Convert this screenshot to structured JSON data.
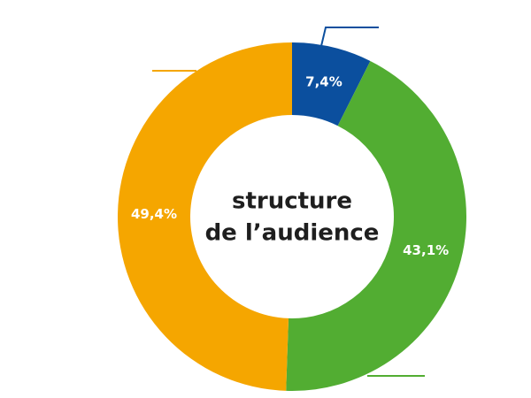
{
  "chart_data": {
    "type": "donut",
    "title": [
      "structure",
      "de l’audience"
    ],
    "categories": [
      null,
      null,
      null
    ],
    "values": [
      7.4,
      43.1,
      49.4
    ],
    "value_labels": [
      "7,4%",
      "43,1%",
      "49,4%"
    ],
    "colors": [
      "#0b4f9e",
      "#52ad32",
      "#f5a600"
    ]
  }
}
